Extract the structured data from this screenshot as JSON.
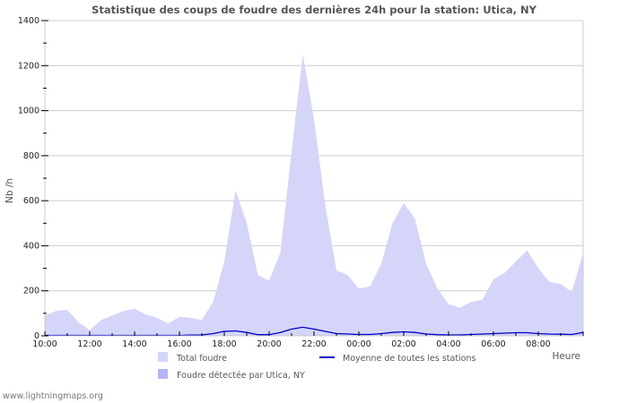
{
  "chart_data": {
    "type": "area",
    "title": "Statistique des coups de foudre des dernières 24h pour la station: Utica, NY",
    "xlabel": "Heure",
    "ylabel": "Nb /h",
    "ylim": [
      0,
      1400
    ],
    "yticks": [
      0,
      200,
      400,
      600,
      800,
      1000,
      1200,
      1400
    ],
    "xtick_labels": [
      "10:00",
      "12:00",
      "14:00",
      "16:00",
      "18:00",
      "20:00",
      "22:00",
      "00:00",
      "02:00",
      "04:00",
      "06:00",
      "08:00"
    ],
    "grid": true,
    "legend_position": "bottom",
    "x": [
      "10:00",
      "10:30",
      "11:00",
      "11:30",
      "12:00",
      "12:30",
      "13:00",
      "13:30",
      "14:00",
      "14:30",
      "15:00",
      "15:30",
      "16:00",
      "16:30",
      "17:00",
      "17:30",
      "18:00",
      "18:30",
      "19:00",
      "19:30",
      "20:00",
      "20:30",
      "21:00",
      "21:30",
      "22:00",
      "22:30",
      "23:00",
      "23:30",
      "00:00",
      "00:30",
      "01:00",
      "01:30",
      "02:00",
      "02:30",
      "03:00",
      "03:30",
      "04:00",
      "04:30",
      "05:00",
      "05:30",
      "06:00",
      "06:30",
      "07:00",
      "07:30",
      "08:00",
      "08:30",
      "09:00",
      "09:30",
      "10:00"
    ],
    "series": [
      {
        "name": "Total foudre",
        "color": "#d5d5fa",
        "type": "area",
        "values": [
          90,
          110,
          115,
          60,
          25,
          70,
          90,
          110,
          120,
          95,
          80,
          55,
          85,
          80,
          70,
          150,
          330,
          645,
          500,
          270,
          245,
          370,
          820,
          1250,
          960,
          580,
          290,
          270,
          210,
          220,
          320,
          500,
          590,
          520,
          320,
          210,
          140,
          125,
          150,
          160,
          250,
          280,
          330,
          380,
          300,
          240,
          230,
          195,
          370
        ]
      },
      {
        "name": "Foudre détectée par Utica, NY",
        "color": "#b4b4f5",
        "type": "area",
        "values": [
          0,
          0,
          0,
          0,
          0,
          0,
          0,
          0,
          0,
          0,
          0,
          0,
          0,
          0,
          0,
          0,
          0,
          0,
          0,
          0,
          0,
          0,
          0,
          0,
          0,
          0,
          0,
          0,
          0,
          0,
          0,
          0,
          0,
          0,
          0,
          0,
          0,
          0,
          0,
          0,
          0,
          0,
          0,
          0,
          0,
          0,
          0,
          0,
          0
        ]
      },
      {
        "name": "Moyenne de toutes les stations",
        "color": "#0000cc",
        "type": "line",
        "values": [
          2,
          2,
          2,
          2,
          2,
          2,
          2,
          2,
          2,
          2,
          2,
          2,
          2,
          3,
          4,
          10,
          20,
          22,
          15,
          5,
          5,
          15,
          30,
          38,
          30,
          20,
          10,
          8,
          6,
          6,
          10,
          15,
          18,
          15,
          8,
          5,
          4,
          4,
          6,
          8,
          10,
          12,
          14,
          14,
          10,
          8,
          7,
          6,
          15
        ]
      }
    ]
  },
  "legend": {
    "items": [
      {
        "label": "Total foudre",
        "color": "#d5d5fa",
        "kind": "box"
      },
      {
        "label": "Foudre détectée par Utica, NY",
        "color": "#b4b4f5",
        "kind": "box"
      },
      {
        "label": "Moyenne de toutes les stations",
        "color": "#0000cc",
        "kind": "line"
      }
    ]
  },
  "footer": {
    "credit": "www.lightningmaps.org"
  }
}
